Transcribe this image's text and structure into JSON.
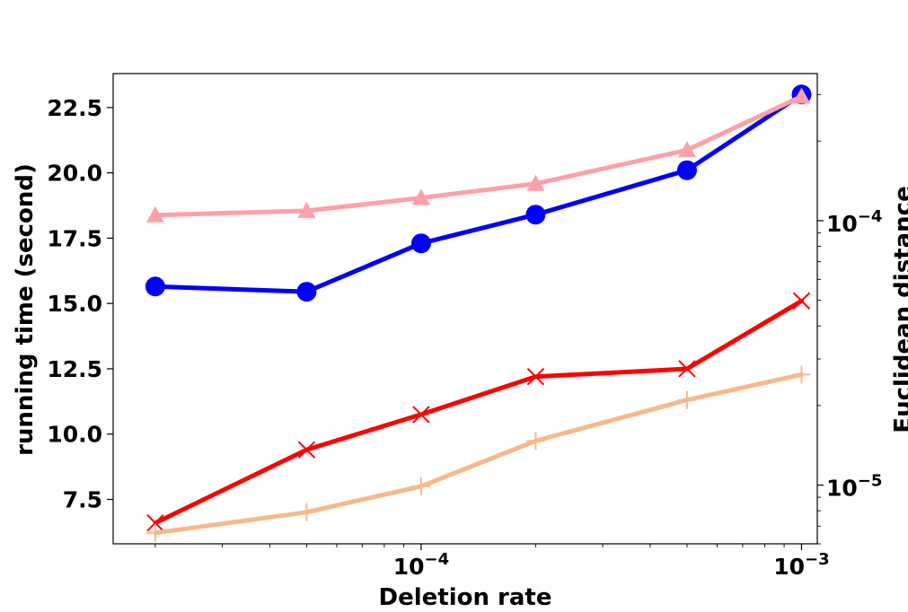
{
  "chart_data": {
    "type": "line",
    "xlabel": "Deletion rate",
    "ylabel": "running time (second)",
    "y2label": "Euclidean distance",
    "x_scale": "log",
    "x": [
      2e-05,
      5e-05,
      0.0001,
      0.0002,
      0.0005,
      0.001
    ],
    "xlim": [
      1.55e-05,
      0.0011
    ],
    "x_ticks": [
      {
        "value": 0.0001,
        "base": "10",
        "exp": "−4"
      },
      {
        "value": 0.001,
        "base": "10",
        "exp": "−3"
      }
    ],
    "ylim": [
      5.8,
      23.8
    ],
    "y_ticks": [
      "7.5",
      "10.0",
      "12.5",
      "15.0",
      "17.5",
      "20.0",
      "22.5"
    ],
    "y2_scale": "log",
    "y2lim": [
      6e-06,
      0.00036
    ],
    "y2_ticks": [
      {
        "value": 1e-05,
        "base": "10",
        "exp": "−5"
      },
      {
        "value": 0.0001,
        "base": "10",
        "exp": "−4"
      }
    ],
    "grid": false,
    "series": [
      {
        "axis": "left",
        "color": "#0000ff",
        "marker": "circle",
        "values": [
          15.65,
          15.45,
          17.3,
          18.4,
          20.1,
          23.0
        ]
      },
      {
        "axis": "left",
        "color": "#ff0000",
        "marker": "x",
        "values": [
          6.6,
          9.4,
          10.75,
          12.2,
          12.5,
          15.1
        ]
      },
      {
        "axis": "right",
        "color": "#ffa0a8",
        "marker": "triangle",
        "values": [
          0.000105,
          0.000109,
          0.000122,
          0.000138,
          0.000185,
          0.000295
        ]
      },
      {
        "axis": "right",
        "color": "#f7b98a",
        "marker": "plus",
        "values": [
          6.6e-06,
          7.9e-06,
          9.9e-06,
          1.47e-05,
          2.1e-05,
          2.62e-05
        ]
      }
    ]
  }
}
